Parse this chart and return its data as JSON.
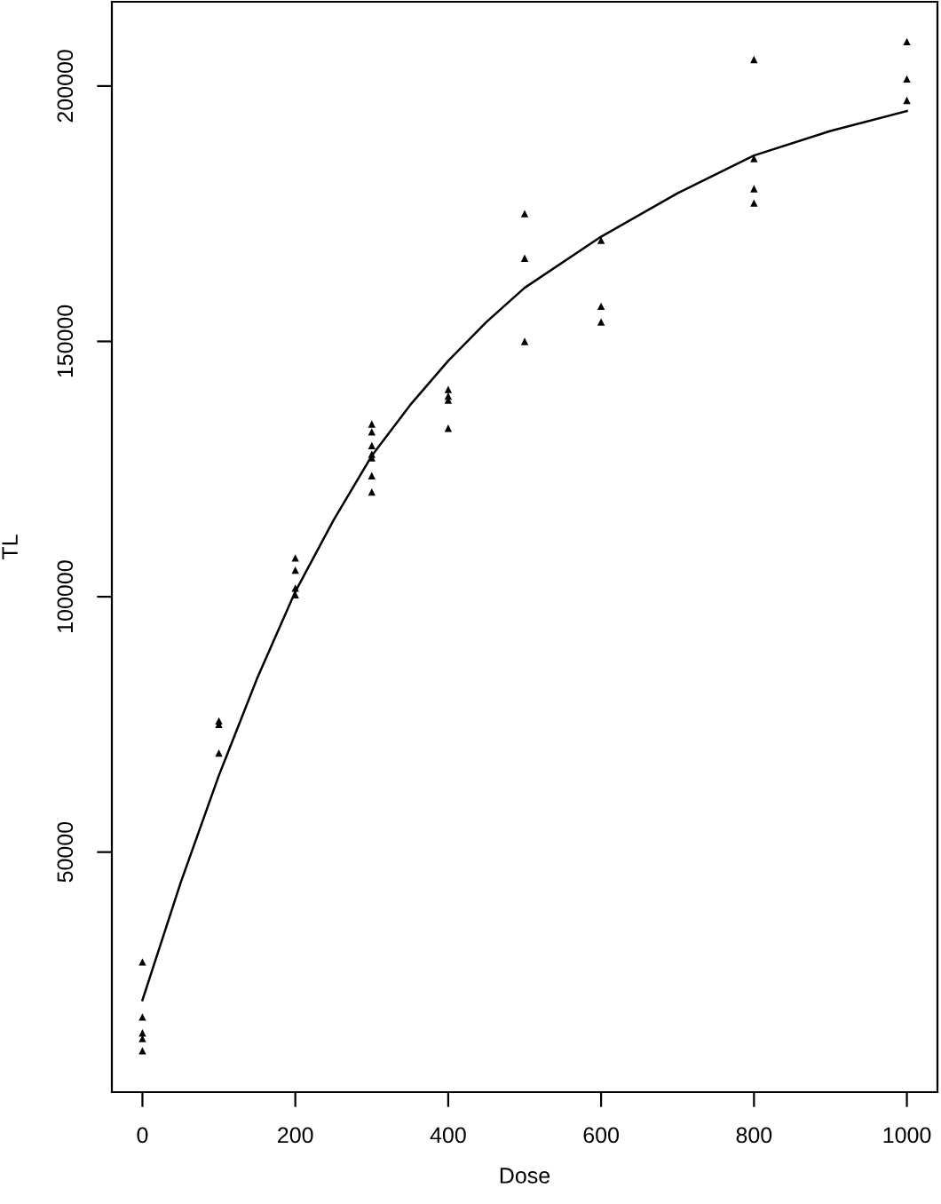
{
  "chart_data": {
    "type": "scatter",
    "xlabel": "Dose",
    "ylabel": "TL",
    "xlim": [
      -40,
      1040
    ],
    "ylim": [
      3000,
      216500
    ],
    "xticks": [
      0,
      200,
      400,
      600,
      800,
      1000
    ],
    "yticks": [
      50000,
      100000,
      150000,
      200000
    ],
    "grid": false,
    "legend": false,
    "marker": "triangle",
    "series": [
      {
        "color": "#000000",
        "x": [
          0,
          0,
          0,
          0,
          0,
          100,
          100,
          100,
          200,
          200,
          200,
          200,
          300,
          300,
          300,
          300,
          300,
          300,
          300,
          400,
          400,
          400,
          400,
          500,
          500,
          500,
          600,
          600,
          600,
          800,
          800,
          800,
          800,
          1000,
          1000,
          1000
        ],
        "values": [
          28500,
          17700,
          14600,
          13500,
          11100,
          75700,
          75000,
          69400,
          107600,
          105200,
          101700,
          100400,
          133800,
          132300,
          129600,
          127900,
          127200,
          123700,
          120500,
          140600,
          139300,
          138500,
          133000,
          175000,
          166300,
          150000,
          169800,
          156900,
          153800,
          205200,
          185800,
          179900,
          177100,
          208700,
          201400,
          197200
        ]
      },
      {
        "type": "line",
        "color": "#000000",
        "marker": "none",
        "line_style": "solid",
        "x": [
          0,
          50,
          100,
          150,
          200,
          250,
          300,
          350,
          400,
          450,
          500,
          600,
          700,
          800,
          900,
          1000
        ],
        "values": [
          21000,
          44000,
          65000,
          84000,
          101000,
          115000,
          127600,
          137500,
          146200,
          153800,
          160500,
          170500,
          179000,
          186400,
          191200,
          195100
        ]
      }
    ]
  }
}
